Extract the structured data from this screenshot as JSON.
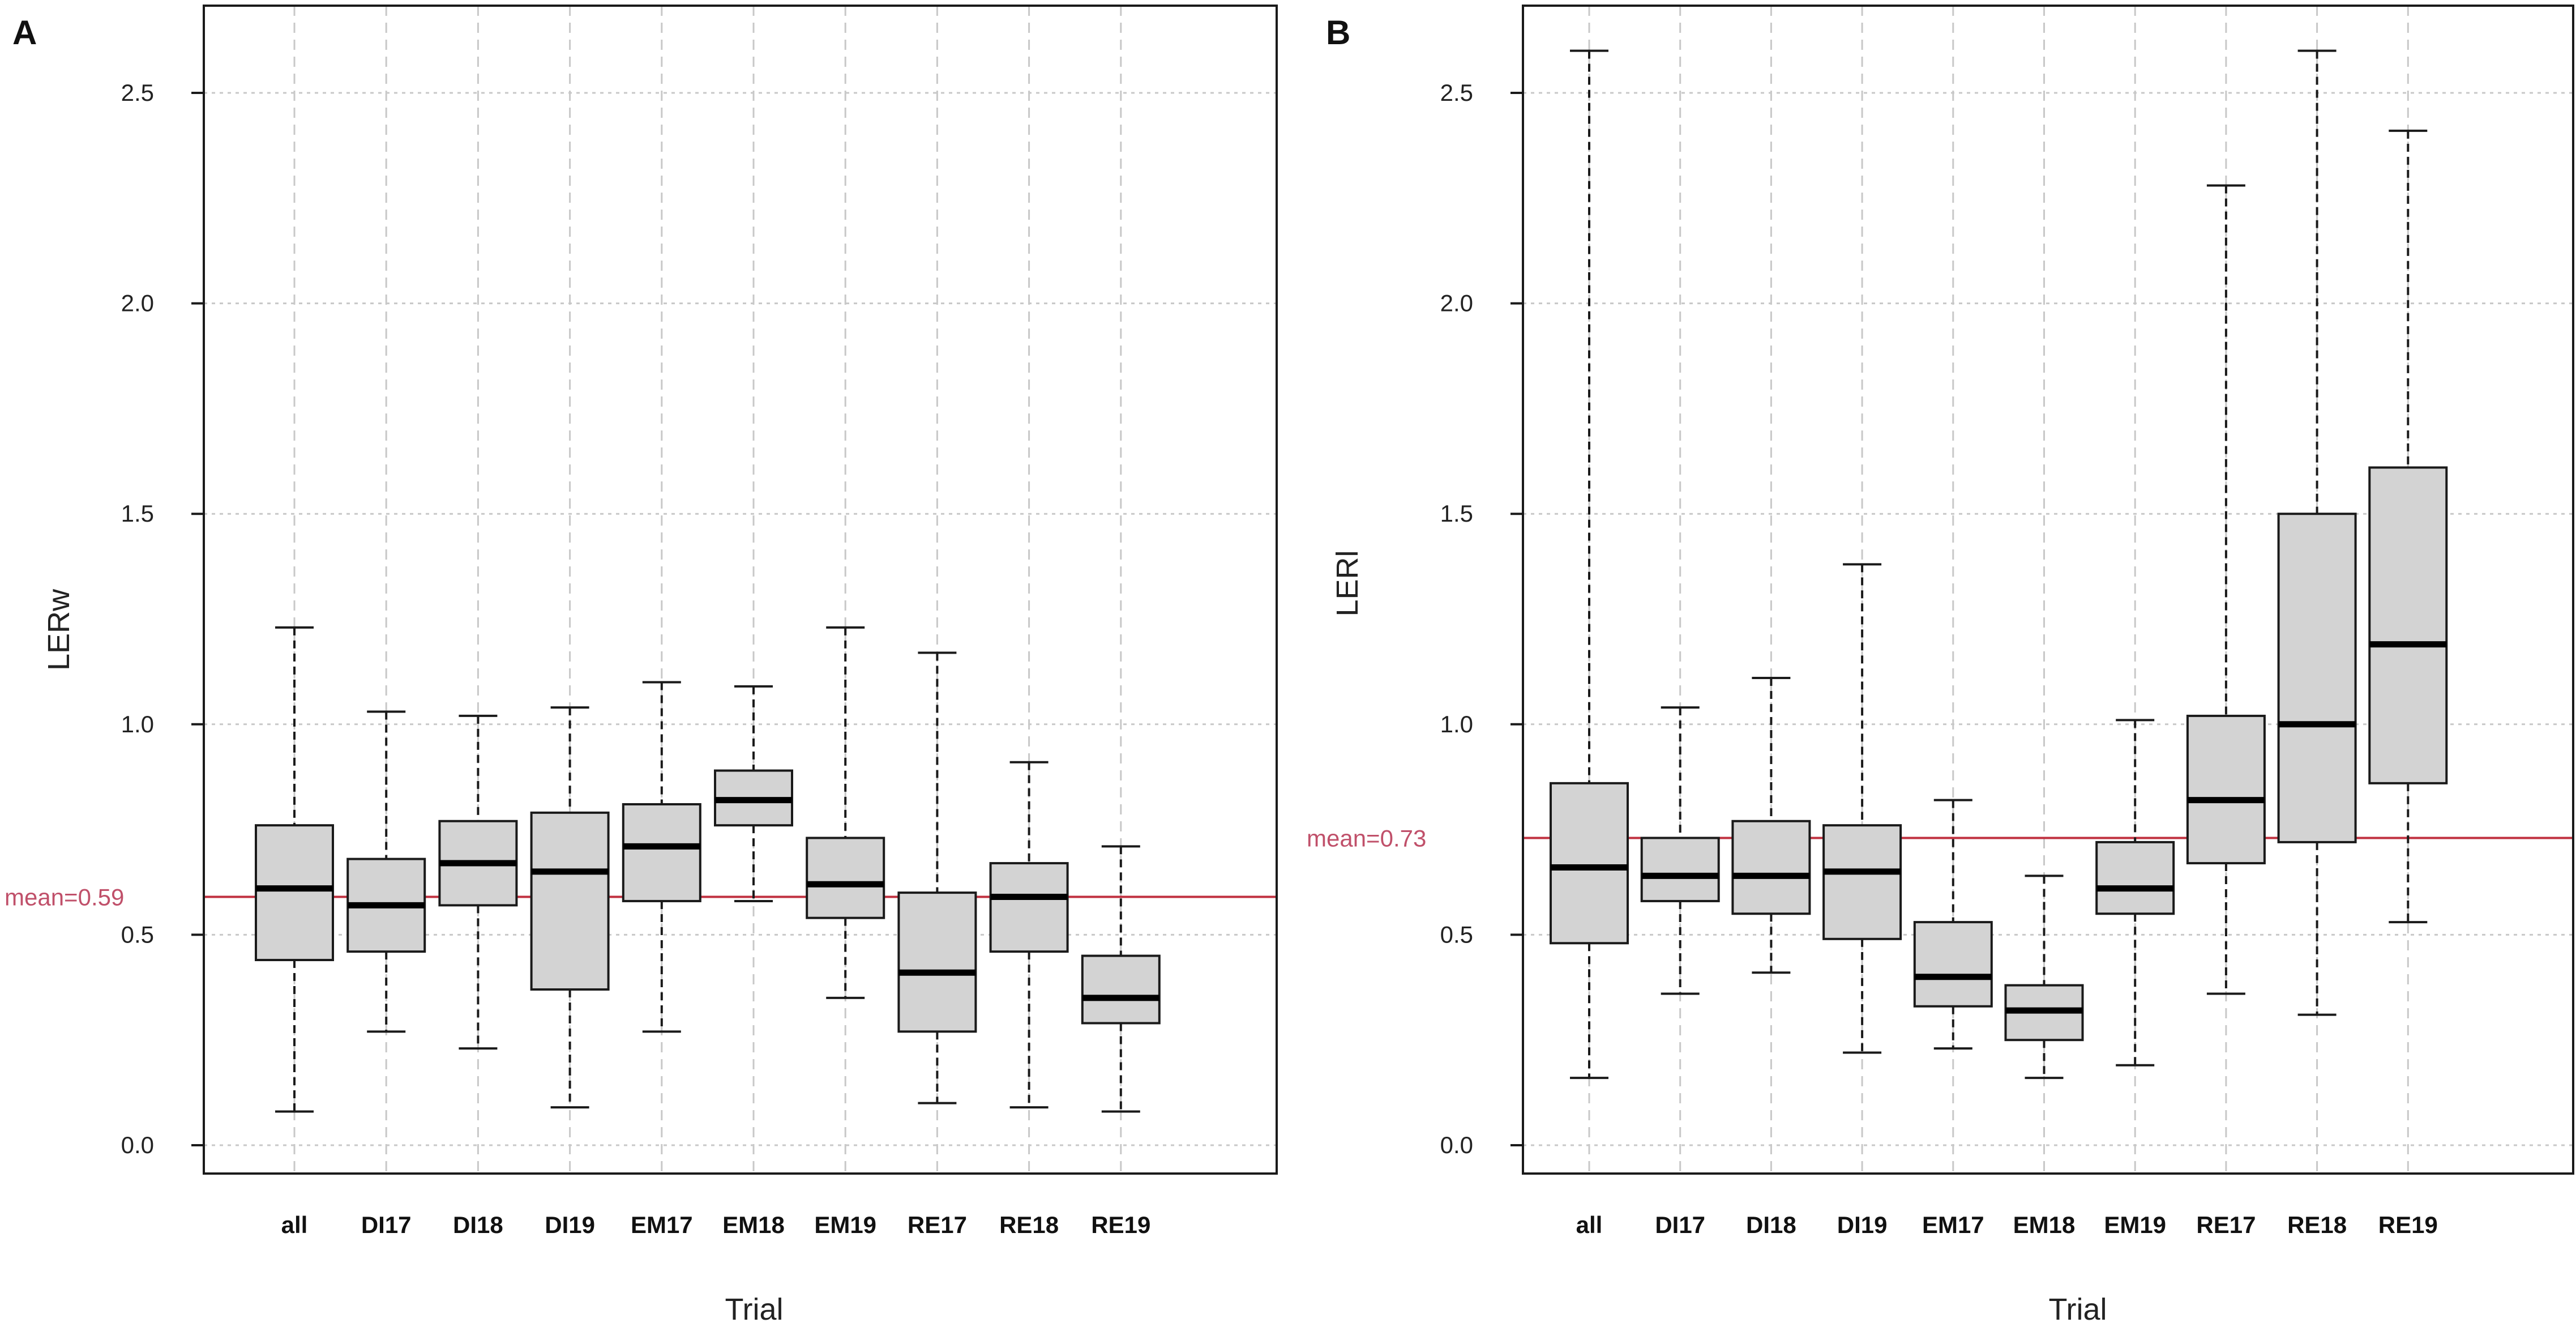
{
  "colors": {
    "box_fill": "#d3d3d3",
    "box_stroke": "#1a1a1a",
    "grid": "#c8c8c8",
    "mean_line": "#c0303f",
    "mean_text": "#c0506a"
  },
  "chart_data": [
    {
      "panel": "A",
      "type": "boxplot",
      "title": "",
      "xlabel": "Trial",
      "ylabel": "LERw",
      "ylim": [
        0,
        2.6
      ],
      "yticks": [
        "0.0",
        "0.5",
        "1.0",
        "1.5",
        "2.0",
        "2.5"
      ],
      "grid": true,
      "mean_value": 0.59,
      "mean_label": "mean=0.59",
      "categories": [
        "all",
        "DI17",
        "DI18",
        "DI19",
        "EM17",
        "EM18",
        "EM19",
        "RE17",
        "RE18",
        "RE19"
      ],
      "boxes": [
        {
          "min": 0.08,
          "q1": 0.44,
          "median": 0.61,
          "q3": 0.76,
          "max": 1.23
        },
        {
          "min": 0.27,
          "q1": 0.46,
          "median": 0.57,
          "q3": 0.68,
          "max": 1.03
        },
        {
          "min": 0.23,
          "q1": 0.57,
          "median": 0.67,
          "q3": 0.77,
          "max": 1.02
        },
        {
          "min": 0.09,
          "q1": 0.37,
          "median": 0.65,
          "q3": 0.79,
          "max": 1.04
        },
        {
          "min": 0.27,
          "q1": 0.58,
          "median": 0.71,
          "q3": 0.81,
          "max": 1.1
        },
        {
          "min": 0.58,
          "q1": 0.76,
          "median": 0.82,
          "q3": 0.89,
          "max": 1.09
        },
        {
          "min": 0.35,
          "q1": 0.54,
          "median": 0.62,
          "q3": 0.73,
          "max": 1.23
        },
        {
          "min": 0.1,
          "q1": 0.27,
          "median": 0.41,
          "q3": 0.6,
          "max": 1.17
        },
        {
          "min": 0.09,
          "q1": 0.46,
          "median": 0.59,
          "q3": 0.67,
          "max": 0.91
        },
        {
          "min": 0.08,
          "q1": 0.29,
          "median": 0.35,
          "q3": 0.45,
          "max": 0.71
        }
      ]
    },
    {
      "panel": "B",
      "type": "boxplot",
      "title": "",
      "xlabel": "Trial",
      "ylabel": "LERl",
      "ylim": [
        0,
        2.6
      ],
      "yticks": [
        "0.0",
        "0.5",
        "1.0",
        "1.5",
        "2.0",
        "2.5"
      ],
      "grid": true,
      "mean_value": 0.73,
      "mean_label": "mean=0.73",
      "categories": [
        "all",
        "DI17",
        "DI18",
        "DI19",
        "EM17",
        "EM18",
        "EM19",
        "RE17",
        "RE18",
        "RE19"
      ],
      "boxes": [
        {
          "min": 0.16,
          "q1": 0.48,
          "median": 0.66,
          "q3": 0.86,
          "max": 2.6
        },
        {
          "min": 0.36,
          "q1": 0.58,
          "median": 0.64,
          "q3": 0.73,
          "max": 1.04
        },
        {
          "min": 0.41,
          "q1": 0.55,
          "median": 0.64,
          "q3": 0.77,
          "max": 1.11
        },
        {
          "min": 0.22,
          "q1": 0.49,
          "median": 0.65,
          "q3": 0.76,
          "max": 1.38
        },
        {
          "min": 0.23,
          "q1": 0.33,
          "median": 0.4,
          "q3": 0.53,
          "max": 0.82
        },
        {
          "min": 0.16,
          "q1": 0.25,
          "median": 0.32,
          "q3": 0.38,
          "max": 0.64
        },
        {
          "min": 0.19,
          "q1": 0.55,
          "median": 0.61,
          "q3": 0.72,
          "max": 1.01
        },
        {
          "min": 0.36,
          "q1": 0.67,
          "median": 0.82,
          "q3": 1.02,
          "max": 2.28
        },
        {
          "min": 0.31,
          "q1": 0.72,
          "median": 1.0,
          "q3": 1.5,
          "max": 2.6
        },
        {
          "min": 0.53,
          "q1": 0.86,
          "median": 1.19,
          "q3": 1.61,
          "max": 2.41
        }
      ]
    }
  ]
}
